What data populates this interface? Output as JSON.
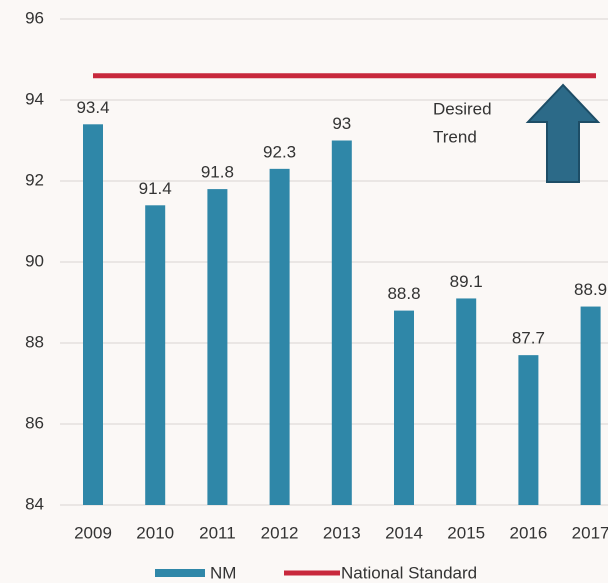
{
  "chart_data": {
    "type": "bar",
    "categories": [
      "2009",
      "2010",
      "2011",
      "2012",
      "2013",
      "2014",
      "2015",
      "2016",
      "2017"
    ],
    "series": [
      {
        "name": "NM",
        "color": "#2f87a8",
        "values": [
          93.4,
          91.4,
          91.8,
          92.3,
          93,
          88.8,
          89.1,
          87.7,
          88.9
        ]
      }
    ],
    "reference_line": {
      "name": "National Standard",
      "color": "#c8283c",
      "value": 94.6
    },
    "annotation": [
      "Desired",
      "Trend"
    ],
    "ylim": [
      84,
      96
    ],
    "yticks": [
      84,
      86,
      88,
      90,
      92,
      94,
      96
    ],
    "grid": true
  }
}
